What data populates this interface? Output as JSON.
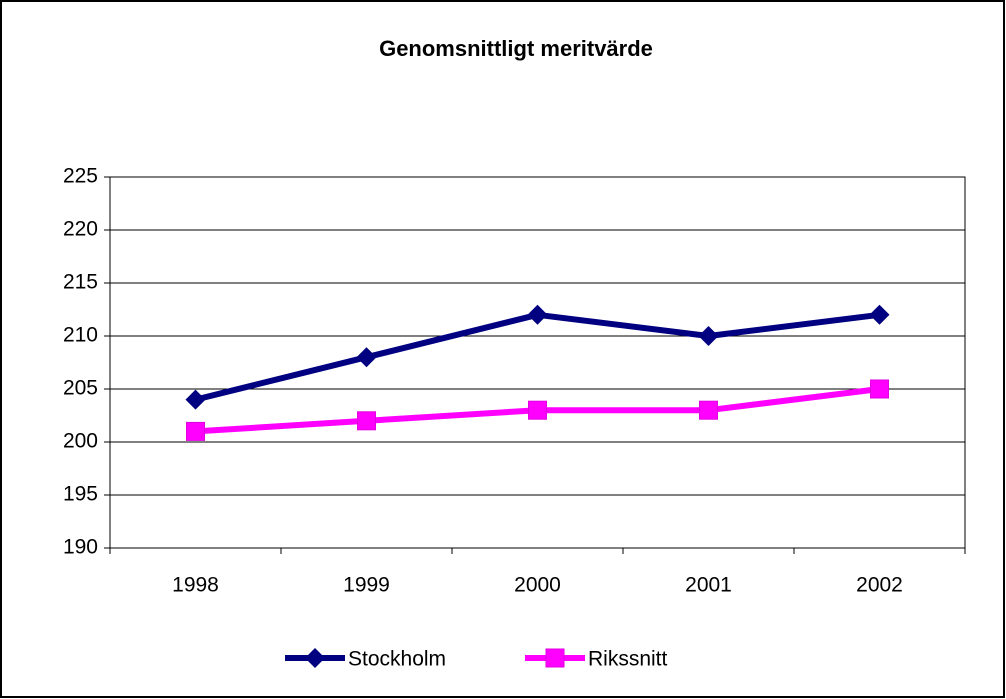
{
  "chart_data": {
    "type": "line",
    "title": "Genomsnittligt meritvärde",
    "categories": [
      "1998",
      "1999",
      "2000",
      "2001",
      "2002"
    ],
    "series": [
      {
        "name": "Stockholm",
        "color": "#000080",
        "marker": "diamond",
        "values": [
          204,
          208,
          212,
          210,
          212
        ]
      },
      {
        "name": "Rikssnitt",
        "color": "#ff00ff",
        "marker": "square",
        "values": [
          201,
          202,
          203,
          203,
          205
        ]
      }
    ],
    "ylim": [
      190,
      225
    ],
    "yticks": [
      190,
      195,
      200,
      205,
      210,
      215,
      220,
      225
    ],
    "grid": true,
    "legend": "bottom"
  }
}
